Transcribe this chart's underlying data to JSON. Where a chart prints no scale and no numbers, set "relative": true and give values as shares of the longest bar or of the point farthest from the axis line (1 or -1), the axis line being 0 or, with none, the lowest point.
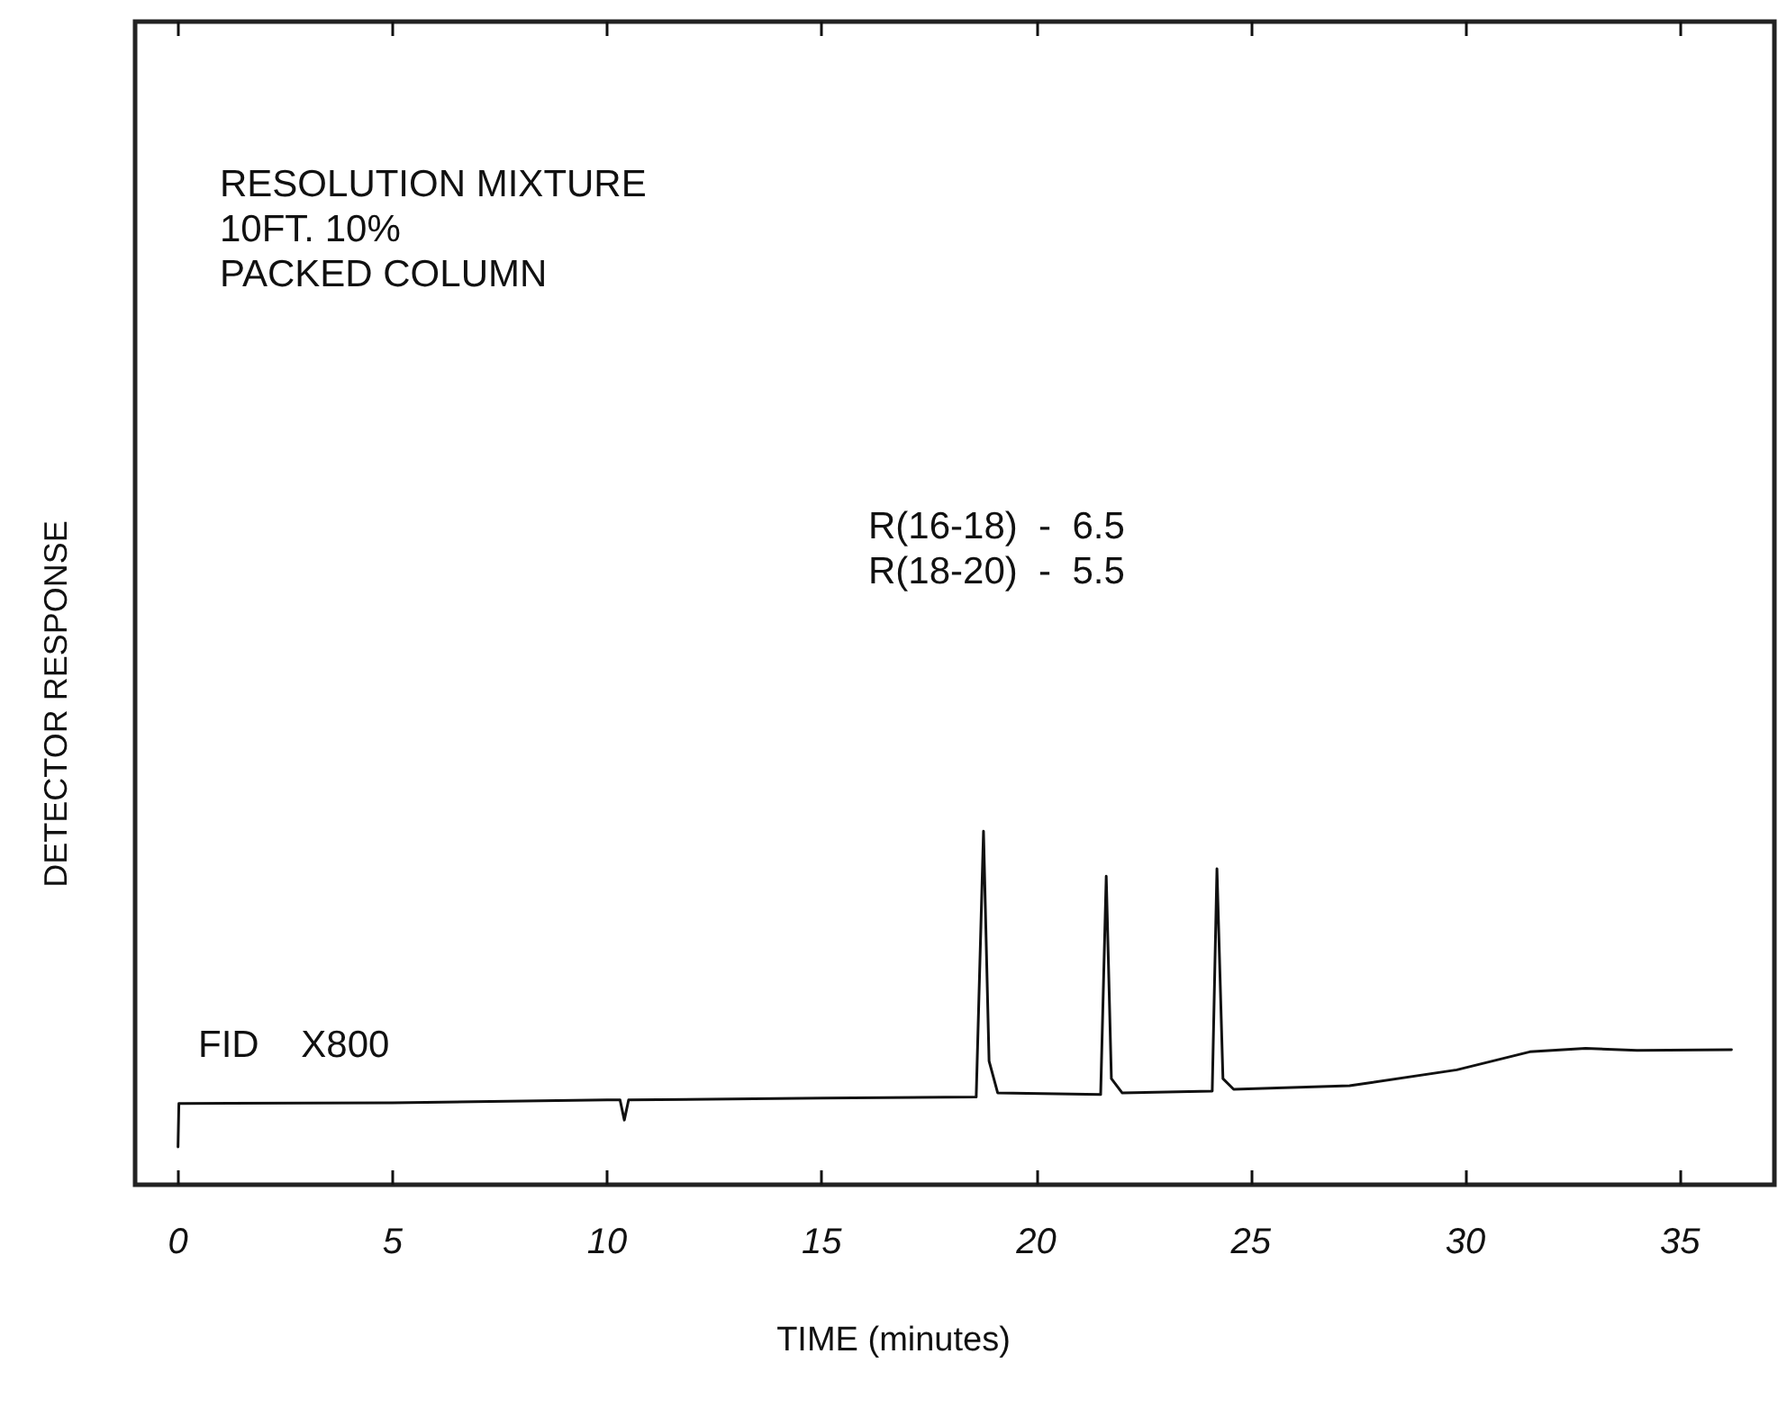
{
  "chart_data": {
    "type": "line",
    "relative": true,
    "xlabel": "TIME (minutes)",
    "ylabel": "DETECTOR RESPONSE",
    "annotations": [
      "RESOLUTION MIXTURE\n10FT. 10%\nPACKED COLUMN",
      "R(16-18)  -  6.5\nR(18-20)  -  5.5",
      "FID    X800"
    ],
    "xlim": [
      -1,
      37.2
    ],
    "xticks": [
      0,
      5,
      10,
      15,
      20,
      25,
      30,
      35
    ],
    "grid": false,
    "line_style": "solid",
    "series": [
      {
        "color": "#111111",
        "x": [
          0,
          0.02,
          0.1,
          5,
          10,
          10.3,
          10.4,
          10.5,
          15,
          18.6,
          18.77,
          18.9,
          19.1,
          21.5,
          21.63,
          21.75,
          22,
          24.1,
          24.21,
          24.35,
          24.6,
          27.3,
          29.8,
          31.5,
          32.8,
          34,
          36.2
        ],
        "values": [
          0.107,
          0.23,
          0.23,
          0.232,
          0.24,
          0.24,
          0.183,
          0.24,
          0.245,
          0.248,
          1,
          0.35,
          0.26,
          0.255,
          0.873,
          0.3,
          0.26,
          0.265,
          0.894,
          0.3,
          0.27,
          0.28,
          0.325,
          0.376,
          0.386,
          0.38,
          0.382
        ]
      }
    ]
  }
}
